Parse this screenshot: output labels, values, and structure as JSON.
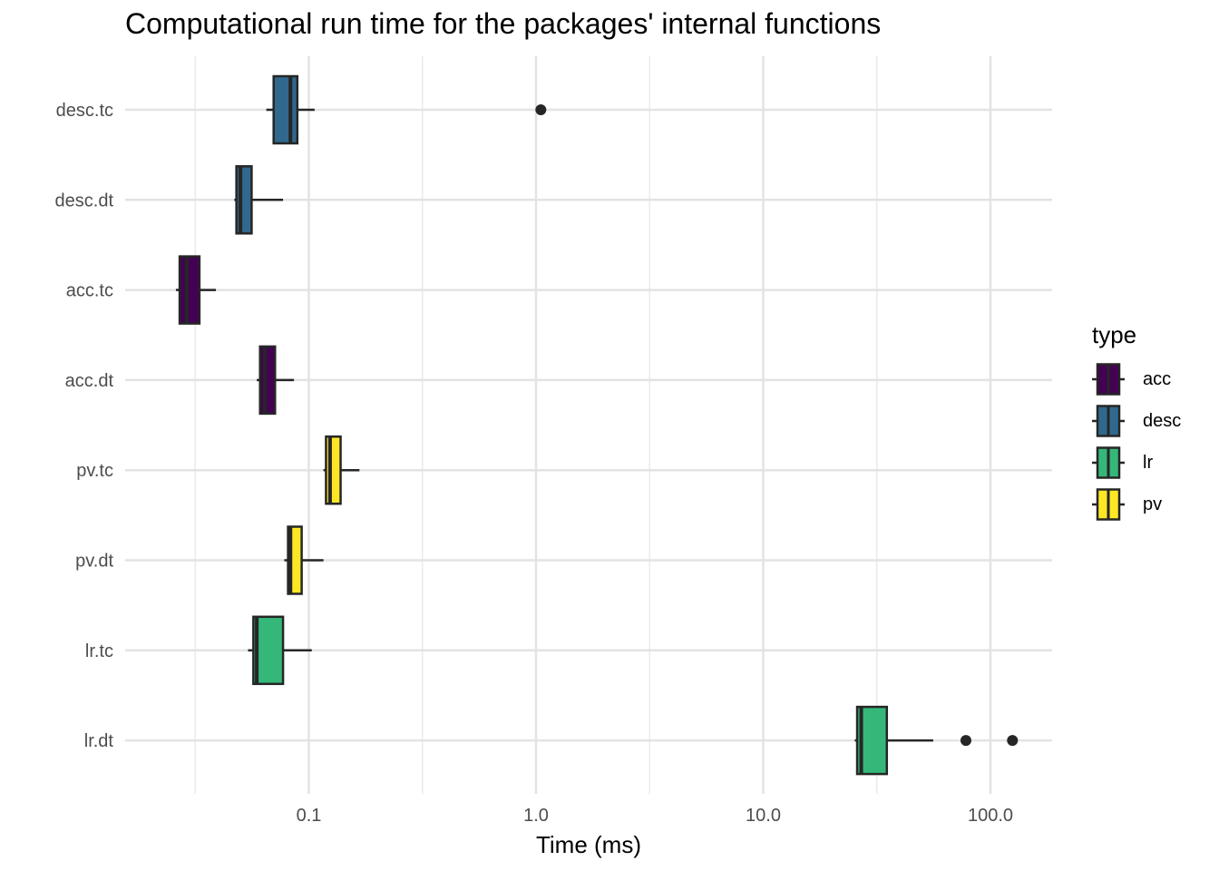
{
  "chart_data": {
    "type": "boxplot",
    "title": "Computational run time for the packages' internal functions",
    "xlabel": "Time (ms)",
    "ylabel": "",
    "x_scale": "log10",
    "xlim": [
      0.015,
      200
    ],
    "x_ticks": [
      0.1,
      1.0,
      10.0,
      100.0
    ],
    "x_tick_labels": [
      "0.1",
      "1.0",
      "10.0",
      "100.0"
    ],
    "grid": true,
    "legend": {
      "title": "type",
      "placement": "right",
      "entries": [
        {
          "name": "acc",
          "color": "#440154"
        },
        {
          "name": "desc",
          "color": "#31688E"
        },
        {
          "name": "lr",
          "color": "#35B779"
        },
        {
          "name": "pv",
          "color": "#FDE725"
        }
      ]
    },
    "categories": [
      "desc.tc",
      "desc.dt",
      "acc.tc",
      "acc.dt",
      "pv.tc",
      "pv.dt",
      "lr.tc",
      "lr.dt"
    ],
    "boxes": [
      {
        "label": "desc.tc",
        "type": "desc",
        "whisker_low": 0.065,
        "q1": 0.07,
        "median": 0.083,
        "q3": 0.089,
        "whisker_high": 0.106,
        "outliers": [
          1.05
        ]
      },
      {
        "label": "desc.dt",
        "type": "desc",
        "whisker_low": 0.047,
        "q1": 0.048,
        "median": 0.05,
        "q3": 0.056,
        "whisker_high": 0.077,
        "outliers": []
      },
      {
        "label": "acc.tc",
        "type": "acc",
        "whisker_low": 0.026,
        "q1": 0.027,
        "median": 0.029,
        "q3": 0.033,
        "whisker_high": 0.039,
        "outliers": []
      },
      {
        "label": "acc.dt",
        "type": "acc",
        "whisker_low": 0.059,
        "q1": 0.061,
        "median": 0.064,
        "q3": 0.071,
        "whisker_high": 0.086,
        "outliers": []
      },
      {
        "label": "pv.tc",
        "type": "pv",
        "whisker_low": 0.116,
        "q1": 0.119,
        "median": 0.124,
        "q3": 0.138,
        "whisker_high": 0.167,
        "outliers": []
      },
      {
        "label": "pv.dt",
        "type": "pv",
        "whisker_low": 0.078,
        "q1": 0.081,
        "median": 0.083,
        "q3": 0.093,
        "whisker_high": 0.116,
        "outliers": []
      },
      {
        "label": "lr.tc",
        "type": "lr",
        "whisker_low": 0.054,
        "q1": 0.057,
        "median": 0.059,
        "q3": 0.077,
        "whisker_high": 0.103,
        "outliers": []
      },
      {
        "label": "lr.dt",
        "type": "lr",
        "whisker_low": 25.3,
        "q1": 25.9,
        "median": 27.0,
        "q3": 35.0,
        "whisker_high": 56.0,
        "outliers": [
          78.0,
          125.0
        ]
      }
    ]
  }
}
